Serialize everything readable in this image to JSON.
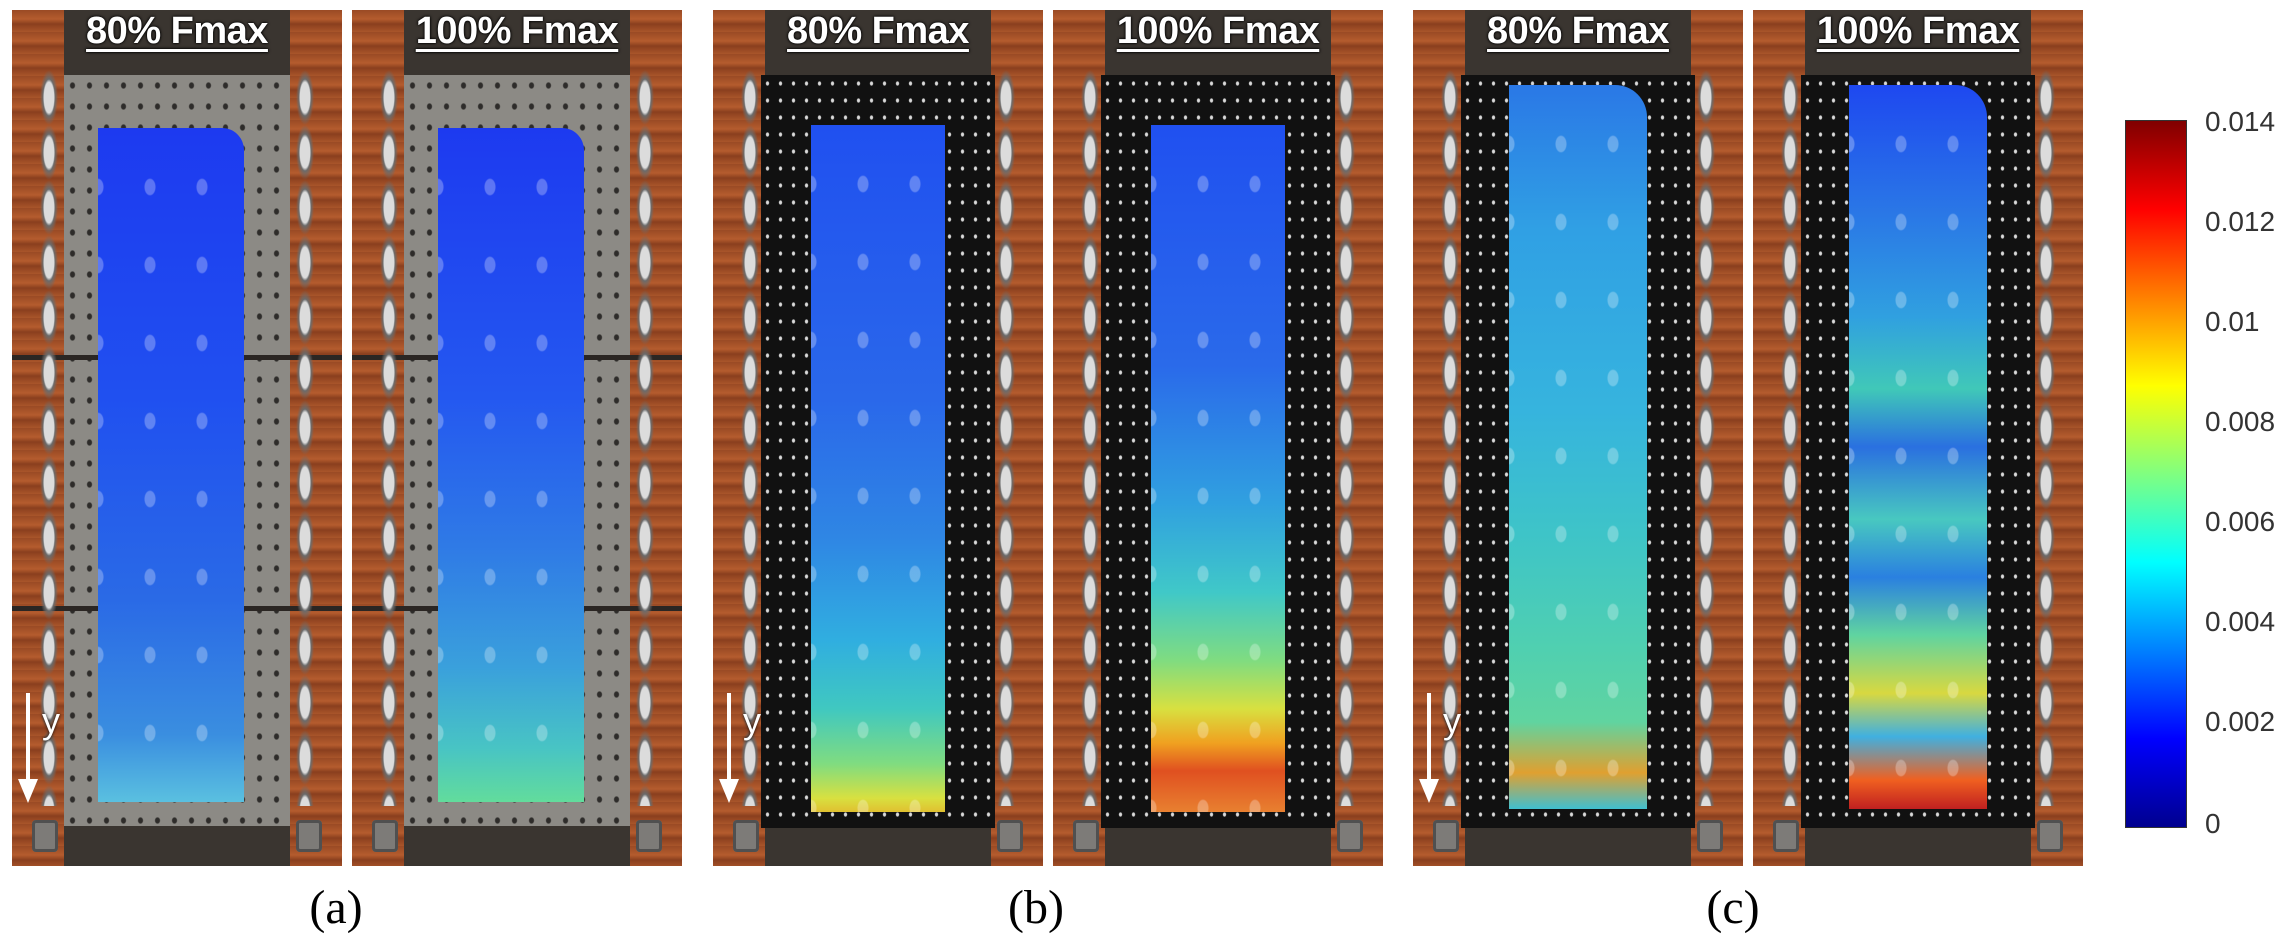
{
  "figure": {
    "panels": [
      {
        "label": "80% Fmax",
        "group": "a",
        "specimen": "grey",
        "field": "a1"
      },
      {
        "label": "100% Fmax",
        "group": "a",
        "specimen": "grey",
        "field": "a2"
      },
      {
        "label": "80% Fmax",
        "group": "b",
        "specimen": "black",
        "field": "b1"
      },
      {
        "label": "100% Fmax",
        "group": "b",
        "specimen": "black",
        "field": "b2"
      },
      {
        "label": "80% Fmax",
        "group": "c",
        "specimen": "black",
        "field": "c1"
      },
      {
        "label": "100% Fmax",
        "group": "c",
        "specimen": "black",
        "field": "c2"
      }
    ],
    "axis_label": "y",
    "captions": [
      "(a)",
      "(b)",
      "(c)"
    ],
    "colorbar": {
      "ticks": [
        "0.014",
        "0.012",
        "0.01",
        "0.008",
        "0.006",
        "0.004",
        "0.002",
        "0"
      ],
      "colors": [
        "#00008f",
        "#0000ff",
        "#0080ff",
        "#00ffff",
        "#80ff80",
        "#ffff00",
        "#ff8000",
        "#ff0000",
        "#800000"
      ]
    }
  }
}
